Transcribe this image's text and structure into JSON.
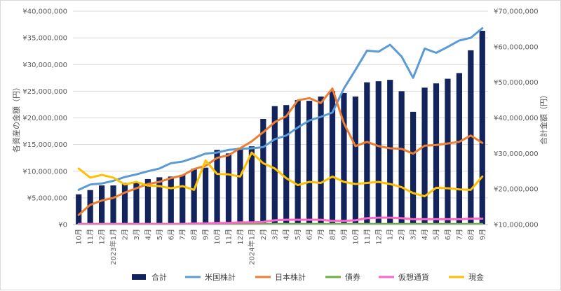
{
  "chart_data": {
    "type": "bar+line",
    "categories": [
      "10月",
      "11月",
      "12月",
      "2023年1月",
      "2月",
      "3月",
      "4月",
      "5月",
      "6月",
      "7月",
      "8月",
      "9月",
      "10月",
      "11月",
      "12月",
      "2024年1月",
      "2月",
      "3月",
      "4月",
      "5月",
      "6月",
      "7月",
      "8月",
      "9月",
      "10月",
      "11月",
      "12月",
      "1月",
      "2月",
      "3月",
      "4月",
      "5月",
      "6月",
      "7月",
      "8月",
      "9月"
    ],
    "left_axis": {
      "label": "各資産の金額（円）",
      "ylim": [
        0,
        40000000
      ],
      "ticks": [
        "¥0",
        "¥5,000,000",
        "¥10,000,000",
        "¥15,000,000",
        "¥20,000,000",
        "¥25,000,000",
        "¥30,000,000",
        "¥35,000,000",
        "¥40,000,000"
      ]
    },
    "right_axis": {
      "label": "合計金額（円）",
      "ylim": [
        10000000,
        70000000
      ],
      "ticks": [
        "¥10,000,000",
        "¥20,000,000",
        "¥30,000,000",
        "¥40,000,000",
        "¥50,000,000",
        "¥60,000,000",
        "¥70,000,000"
      ]
    },
    "series": [
      {
        "name": "合計",
        "kind": "bar",
        "axis": "right",
        "color": "#13245c",
        "values": [
          18500000,
          19700000,
          21000000,
          21000000,
          21700000,
          22000000,
          22800000,
          23300000,
          23500000,
          24000000,
          25700000,
          26000000,
          31000000,
          30000000,
          31600000,
          32000000,
          39700000,
          43300000,
          43600000,
          45000000,
          44800000,
          46000000,
          47500000,
          47000000,
          46000000,
          50000000,
          50300000,
          50700000,
          47500000,
          41700000,
          48500000,
          49700000,
          51000000,
          52600000,
          59000000,
          64500000
        ]
      },
      {
        "name": "米国株計",
        "kind": "line",
        "axis": "left",
        "color": "#5b9bd5",
        "values": [
          6500000,
          7500000,
          7700000,
          8200000,
          8900000,
          9400000,
          10000000,
          10500000,
          11500000,
          11800000,
          12500000,
          13300000,
          13500000,
          14000000,
          14200000,
          14300000,
          14500000,
          16000000,
          16700000,
          18200000,
          19500000,
          20200000,
          21000000,
          25500000,
          29000000,
          32600000,
          32400000,
          33700000,
          31500000,
          27500000,
          33000000,
          32200000,
          33300000,
          34500000,
          35000000,
          36800000
        ]
      },
      {
        "name": "日本株計",
        "kind": "line",
        "axis": "left",
        "color": "#ed7d31",
        "values": [
          1800000,
          3700000,
          4500000,
          5000000,
          6000000,
          6800000,
          7600000,
          8000000,
          8700000,
          9200000,
          10400000,
          11000000,
          12500000,
          13000000,
          14300000,
          15600000,
          17300000,
          19200000,
          20300000,
          23300000,
          23700000,
          22800000,
          25500000,
          19000000,
          14700000,
          15500000,
          14700000,
          14300000,
          14200000,
          13300000,
          14800000,
          14900000,
          15200000,
          15500000,
          16700000,
          15300000
        ]
      },
      {
        "name": "債券",
        "kind": "line",
        "axis": "left",
        "color": "#70ad47",
        "values": [
          100000,
          100000,
          100000,
          100000,
          100000,
          100000,
          100000,
          100000,
          100000,
          100000,
          100000,
          100000,
          100000,
          100000,
          100000,
          100000,
          100000,
          100000,
          100000,
          100000,
          100000,
          100000,
          100000,
          100000,
          100000,
          100000,
          100000,
          100000,
          100000,
          100000,
          100000,
          100000,
          100000,
          100000,
          100000,
          100000
        ]
      },
      {
        "name": "仮想通貨",
        "kind": "line",
        "axis": "left",
        "color": "#ff66cc",
        "values": [
          100000,
          100000,
          100000,
          100000,
          100000,
          100000,
          100000,
          100000,
          100000,
          100000,
          200000,
          200000,
          300000,
          300000,
          400000,
          400000,
          500000,
          800000,
          900000,
          900000,
          900000,
          900000,
          700000,
          700000,
          800000,
          1200000,
          1300000,
          1300000,
          1200000,
          1000000,
          1000000,
          1000000,
          1000000,
          1000000,
          1100000,
          1100000
        ]
      },
      {
        "name": "現金",
        "kind": "line",
        "axis": "left",
        "color": "#ffc000",
        "values": [
          10500000,
          8800000,
          9300000,
          8800000,
          7500000,
          8000000,
          7300000,
          7200000,
          6800000,
          7200000,
          6500000,
          12000000,
          9500000,
          9400000,
          9000000,
          13500000,
          11500000,
          10500000,
          8700000,
          7400000,
          8000000,
          7800000,
          9000000,
          8000000,
          7600000,
          7800000,
          8000000,
          7600000,
          7000000,
          5900000,
          5300000,
          6900000,
          6800000,
          6600000,
          6500000,
          9000000
        ]
      }
    ]
  }
}
